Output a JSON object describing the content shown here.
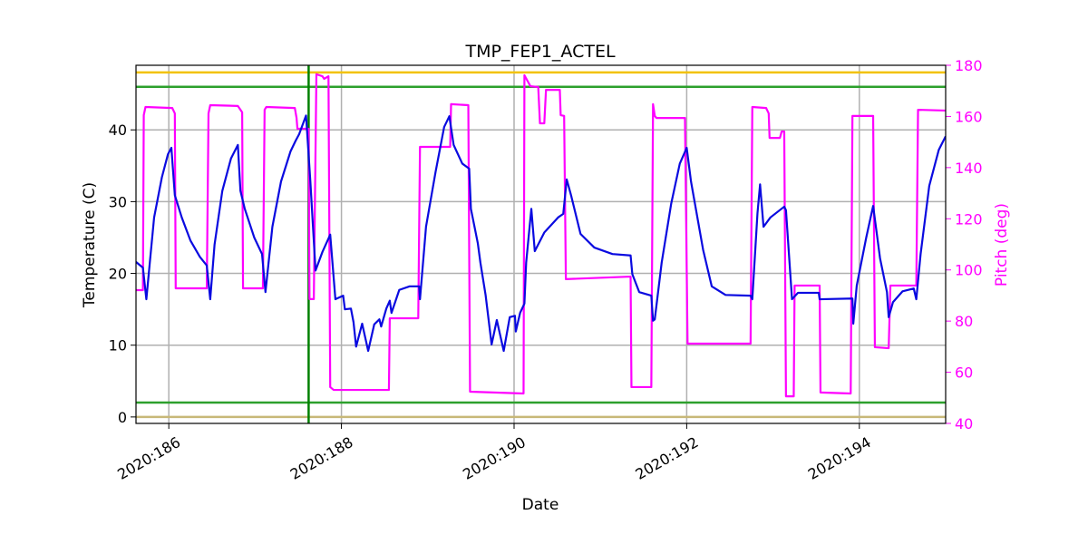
{
  "chart_data": {
    "type": "line",
    "title": "TMP_FEP1_ACTEL",
    "x_label": "Date",
    "y_label": "Temperature (C)",
    "y2_label": "Pitch (deg)",
    "y2_color": "#ff00ff",
    "xlim": [
      185.62,
      195.0
    ],
    "xticks": [
      {
        "value": 186,
        "label": "2020:186"
      },
      {
        "value": 188,
        "label": "2020:188"
      },
      {
        "value": 190,
        "label": "2020:190"
      },
      {
        "value": 192,
        "label": "2020:192"
      },
      {
        "value": 194,
        "label": "2020:194"
      }
    ],
    "ylim": [
      -0.9,
      49
    ],
    "yticks": [
      0,
      10,
      20,
      30,
      40
    ],
    "y2lim": [
      40,
      180
    ],
    "y2ticks": [
      40,
      60,
      80,
      100,
      120,
      140,
      160,
      180
    ],
    "grid": true,
    "hlines": [
      {
        "value": 48,
        "color": "#f2c200"
      },
      {
        "value": 46,
        "color": "#2ca02c"
      },
      {
        "value": 2,
        "color": "#2ca02c"
      },
      {
        "value": 0,
        "color": "#c8b878"
      }
    ],
    "vlines": [
      {
        "value": 187.62,
        "color": "#008000"
      }
    ],
    "series": [
      {
        "color": "#ff00ff",
        "axis": "y2",
        "x": [
          185.62,
          185.7,
          185.71,
          185.73,
          186.04,
          186.07,
          186.08,
          186.44,
          186.46,
          186.48,
          186.8,
          186.85,
          186.86,
          187.09,
          187.11,
          187.13,
          187.46,
          187.48,
          187.49,
          187.62,
          187.63,
          187.68,
          187.71,
          187.78,
          187.8,
          187.85,
          187.87,
          187.91,
          188.55,
          188.56,
          188.89,
          188.91,
          189.26,
          189.27,
          189.47,
          189.49,
          190.11,
          190.12,
          190.19,
          190.28,
          190.3,
          190.35,
          190.37,
          190.53,
          190.54,
          190.58,
          190.6,
          191.35,
          191.36,
          191.59,
          191.61,
          191.63,
          191.65,
          191.98,
          192.01,
          192.74,
          192.76,
          192.92,
          192.95,
          192.96,
          193.08,
          193.1,
          193.13,
          193.15,
          193.24,
          193.25,
          193.54,
          193.55,
          193.9,
          193.92,
          194.16,
          194.18,
          194.34,
          194.36,
          194.66,
          194.68,
          195.0
        ],
        "values": [
          92.1,
          92.1,
          160.5,
          163.7,
          163.3,
          161.2,
          92.8,
          92.8,
          161.2,
          164.4,
          164.1,
          161.6,
          92.8,
          92.8,
          162.6,
          163.7,
          163.3,
          159.4,
          155.2,
          155.2,
          88.6,
          88.6,
          176.5,
          175.7,
          174.7,
          175.7,
          54.2,
          53.1,
          53.1,
          81.1,
          81.1,
          148.1,
          148.1,
          164.8,
          164.4,
          52.4,
          51.7,
          176.1,
          171.8,
          171.5,
          157.3,
          157.3,
          170.4,
          170.4,
          160.5,
          160.2,
          96.4,
          97.4,
          54.2,
          54.2,
          164.8,
          160.2,
          159.4,
          159.4,
          71.2,
          71.2,
          163.7,
          163.3,
          161.2,
          151.6,
          151.6,
          154.1,
          154.1,
          50.6,
          50.6,
          93.9,
          93.9,
          52.1,
          51.7,
          160.2,
          160.2,
          69.8,
          69.4,
          93.9,
          93.9,
          162.6,
          162.3
        ]
      },
      {
        "color": "#0a0ae0",
        "x": [
          185.62,
          185.67,
          185.7,
          185.74,
          185.78,
          185.83,
          185.92,
          185.99,
          186.03,
          186.07,
          186.15,
          186.25,
          186.36,
          186.44,
          186.48,
          186.53,
          186.62,
          186.72,
          186.8,
          186.83,
          186.88,
          186.99,
          187.08,
          187.12,
          187.2,
          187.3,
          187.41,
          187.47,
          187.51,
          187.59,
          187.64,
          187.7,
          187.78,
          187.87,
          187.93,
          188.02,
          188.04,
          188.11,
          188.14,
          188.17,
          188.24,
          188.31,
          188.38,
          188.44,
          188.46,
          188.52,
          188.56,
          188.58,
          188.67,
          188.79,
          188.9,
          188.91,
          188.98,
          189.09,
          189.19,
          189.25,
          189.3,
          189.4,
          189.48,
          189.5,
          189.58,
          189.61,
          189.67,
          189.74,
          189.8,
          189.88,
          189.95,
          190.01,
          190.02,
          190.07,
          190.12,
          190.14,
          190.2,
          190.24,
          190.35,
          190.51,
          190.57,
          190.61,
          190.66,
          190.77,
          190.93,
          191.14,
          191.35,
          191.37,
          191.45,
          191.59,
          191.61,
          191.63,
          191.71,
          191.82,
          191.92,
          192.0,
          192.05,
          192.19,
          192.29,
          192.45,
          192.74,
          192.76,
          192.82,
          192.85,
          192.89,
          192.97,
          193.13,
          193.15,
          193.22,
          193.29,
          193.53,
          193.54,
          193.92,
          193.93,
          193.97,
          194.08,
          194.16,
          194.24,
          194.32,
          194.34,
          194.39,
          194.5,
          194.63,
          194.66,
          194.71,
          194.81,
          194.92,
          195.0
        ],
        "values": [
          21.6,
          21.1,
          20.8,
          16.4,
          21.5,
          27.8,
          33.4,
          36.6,
          37.5,
          30.9,
          27.8,
          24.6,
          22.3,
          21.1,
          16.4,
          24.0,
          31.5,
          36.0,
          37.9,
          31.5,
          29.0,
          25.0,
          22.7,
          17.4,
          26.5,
          32.8,
          37.0,
          38.5,
          39.4,
          42.0,
          32.8,
          20.4,
          23.0,
          25.4,
          16.4,
          16.9,
          15.0,
          15.1,
          13.2,
          9.8,
          13.0,
          9.2,
          12.9,
          13.6,
          12.6,
          15.1,
          16.2,
          14.5,
          17.7,
          18.2,
          18.2,
          16.4,
          26.5,
          34.1,
          40.4,
          41.9,
          37.9,
          35.3,
          34.6,
          29.0,
          24.2,
          21.5,
          17.0,
          10.1,
          13.5,
          9.2,
          13.9,
          14.1,
          11.9,
          14.5,
          15.8,
          21.5,
          29.0,
          23.1,
          25.7,
          27.8,
          28.3,
          33.1,
          30.9,
          25.5,
          23.6,
          22.7,
          22.5,
          19.9,
          17.4,
          16.9,
          13.4,
          13.6,
          21.5,
          29.7,
          35.3,
          37.5,
          32.8,
          23.3,
          18.2,
          17.0,
          16.9,
          16.4,
          28.4,
          32.4,
          26.5,
          27.8,
          29.3,
          28.8,
          16.4,
          17.3,
          17.3,
          16.4,
          16.5,
          13.0,
          18.3,
          25.0,
          29.4,
          22.1,
          17.4,
          13.9,
          16.0,
          17.5,
          17.9,
          16.4,
          22.7,
          32.2,
          37.2,
          39.1
        ]
      }
    ]
  }
}
